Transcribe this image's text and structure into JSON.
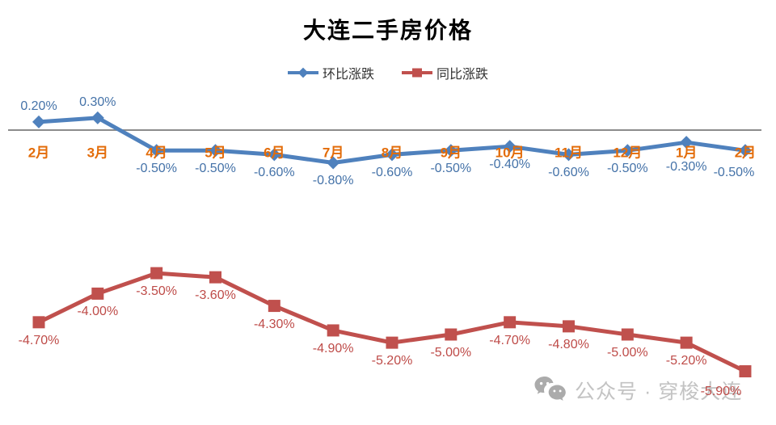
{
  "chart_data": {
    "type": "line",
    "title": "大连二手房价格",
    "categories": [
      "2月",
      "3月",
      "4月",
      "5月",
      "6月",
      "7月",
      "8月",
      "9月",
      "10月",
      "11月",
      "12月",
      "1月",
      "2月"
    ],
    "series": [
      {
        "name": "环比涨跌",
        "marker": "diamond",
        "color": "#4F81BD",
        "label_color": "#4472A8",
        "values": [
          0.2,
          0.3,
          -0.5,
          -0.5,
          -0.6,
          -0.8,
          -0.6,
          -0.5,
          -0.4,
          -0.6,
          -0.5,
          -0.3,
          -0.5
        ],
        "labels": [
          "0.20%",
          "0.30%",
          "-0.50%",
          "-0.50%",
          "-0.60%",
          "-0.80%",
          "-0.60%",
          "-0.50%",
          "-0.40%",
          "-0.60%",
          "-0.50%",
          "-0.30%",
          "-0.50%"
        ]
      },
      {
        "name": "同比涨跌",
        "marker": "square",
        "color": "#C0504D",
        "label_color": "#BE4B48",
        "values": [
          -4.7,
          -4.0,
          -3.5,
          -3.6,
          -4.3,
          -4.9,
          -5.2,
          -5.0,
          -4.7,
          -4.8,
          -5.0,
          -5.2,
          -5.9
        ],
        "labels": [
          "-4.70%",
          "-4.00%",
          "-3.50%",
          "-3.60%",
          "-4.30%",
          "-4.90%",
          "-5.20%",
          "-5.00%",
          "-4.70%",
          "-4.80%",
          "-5.00%",
          "-5.20%",
          "-5.90%"
        ]
      }
    ],
    "category_label_color": "#E36C09",
    "axis_line_color": "#8C8C8C",
    "title_color": "#000000",
    "legend_text_color": "#333333",
    "legend_position": "top",
    "grid": false,
    "ylim": [
      -6.5,
      0.8
    ]
  },
  "watermark": {
    "icon": "wechat-icon",
    "text": "公众号 · 穿梭大连",
    "color": "#C3C3C3",
    "icon_color": "#ABABAB"
  }
}
